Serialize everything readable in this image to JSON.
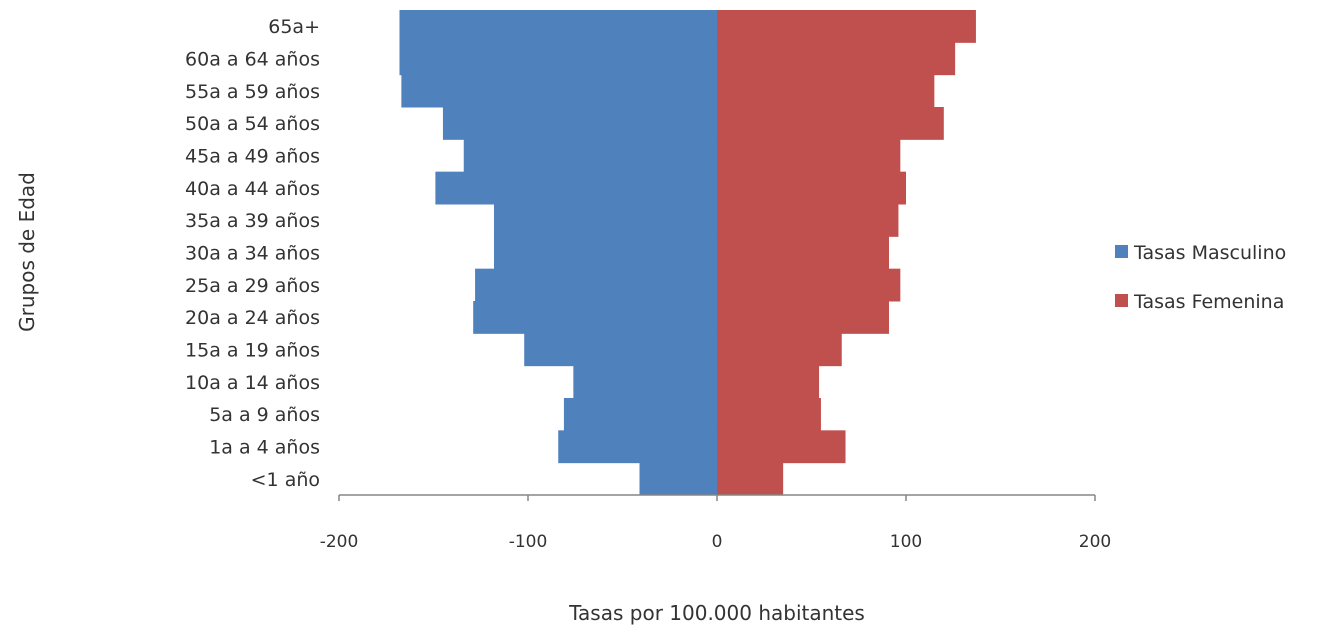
{
  "chart_data": {
    "type": "bar",
    "orientation": "horizontal",
    "stacking": "diverging",
    "categories": [
      "<1 año",
      "1a a 4 años",
      "5a a 9 años",
      "10a  a 14 años",
      "15a  a 19 años",
      "20a a 24 años",
      "25a a 29 años",
      "30a a 34 años",
      "35a a 39 años",
      "40a a 44 años",
      "45a a 49 años",
      "50a a 54 años",
      "55a a 59 años",
      "60a a 64 años",
      "65a+"
    ],
    "series": [
      {
        "name": "Tasas Masculino",
        "color": "#4f81bd",
        "values": [
          -41,
          -84,
          -81,
          -76,
          -102,
          -129,
          -128,
          -118,
          -118,
          -149,
          -134,
          -145,
          -167,
          -168,
          -168
        ]
      },
      {
        "name": "Tasas Femenina",
        "color": "#c0504d",
        "values": [
          35,
          68,
          55,
          54,
          66,
          91,
          97,
          91,
          96,
          100,
          97,
          120,
          115,
          126,
          137
        ]
      }
    ],
    "title": "",
    "xlabel": "Tasas por 100.000 habitantes",
    "ylabel": "Grupos de Edad",
    "xlim": [
      -200,
      200
    ],
    "xticks": [
      -200,
      -100,
      0,
      100,
      200
    ],
    "xtick_labels": [
      "-200",
      "-100",
      "0",
      "100",
      "200"
    ],
    "grid": false,
    "legend_position": "right"
  }
}
